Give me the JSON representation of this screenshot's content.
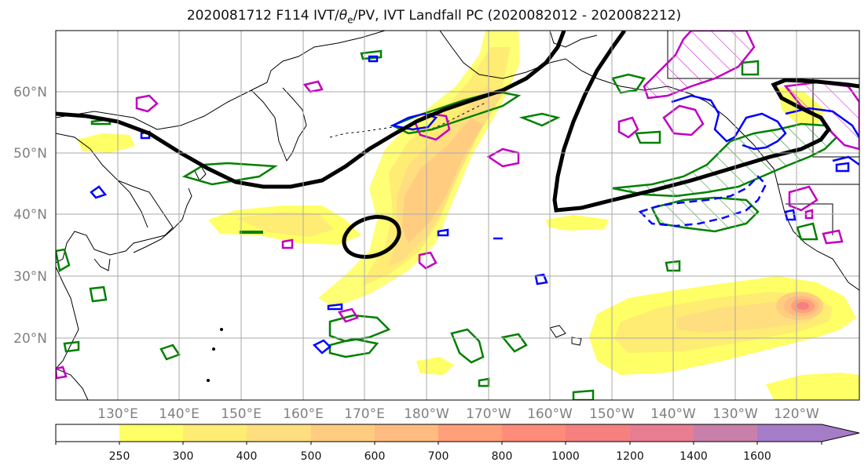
{
  "title": {
    "prefix": "2020081712 F114 IVT/",
    "theta_symbol": "θ",
    "theta_sub": "e",
    "suffix": "/PV, IVT Landfall PC (2020082012 - 2020082212)"
  },
  "latitude_labels": [
    "60°N",
    "50°N",
    "40°N",
    "30°N",
    "20°N"
  ],
  "longitude_labels": [
    "130°E",
    "140°E",
    "150°E",
    "160°E",
    "170°E",
    "180°W",
    "170°W",
    "160°W",
    "150°W",
    "140°W",
    "130°W",
    "120°W"
  ],
  "colorbar": {
    "levels": [
      "250",
      "300",
      "400",
      "500",
      "600",
      "700",
      "800",
      "1000",
      "1200",
      "1400",
      "1600"
    ],
    "colors": [
      "#ffff66",
      "#ffec73",
      "#ffde80",
      "#ffcc80",
      "#ffbb80",
      "#ffa07a",
      "#ff8c78",
      "#f58080",
      "#e87c90",
      "#c880aa",
      "#a57cc8"
    ]
  },
  "contour_colors": {
    "ivt_landfall_pc": "#000000",
    "theta_e": "#008000",
    "pv_positive": "#c000c0",
    "pv_negative": "#0000ff"
  }
}
